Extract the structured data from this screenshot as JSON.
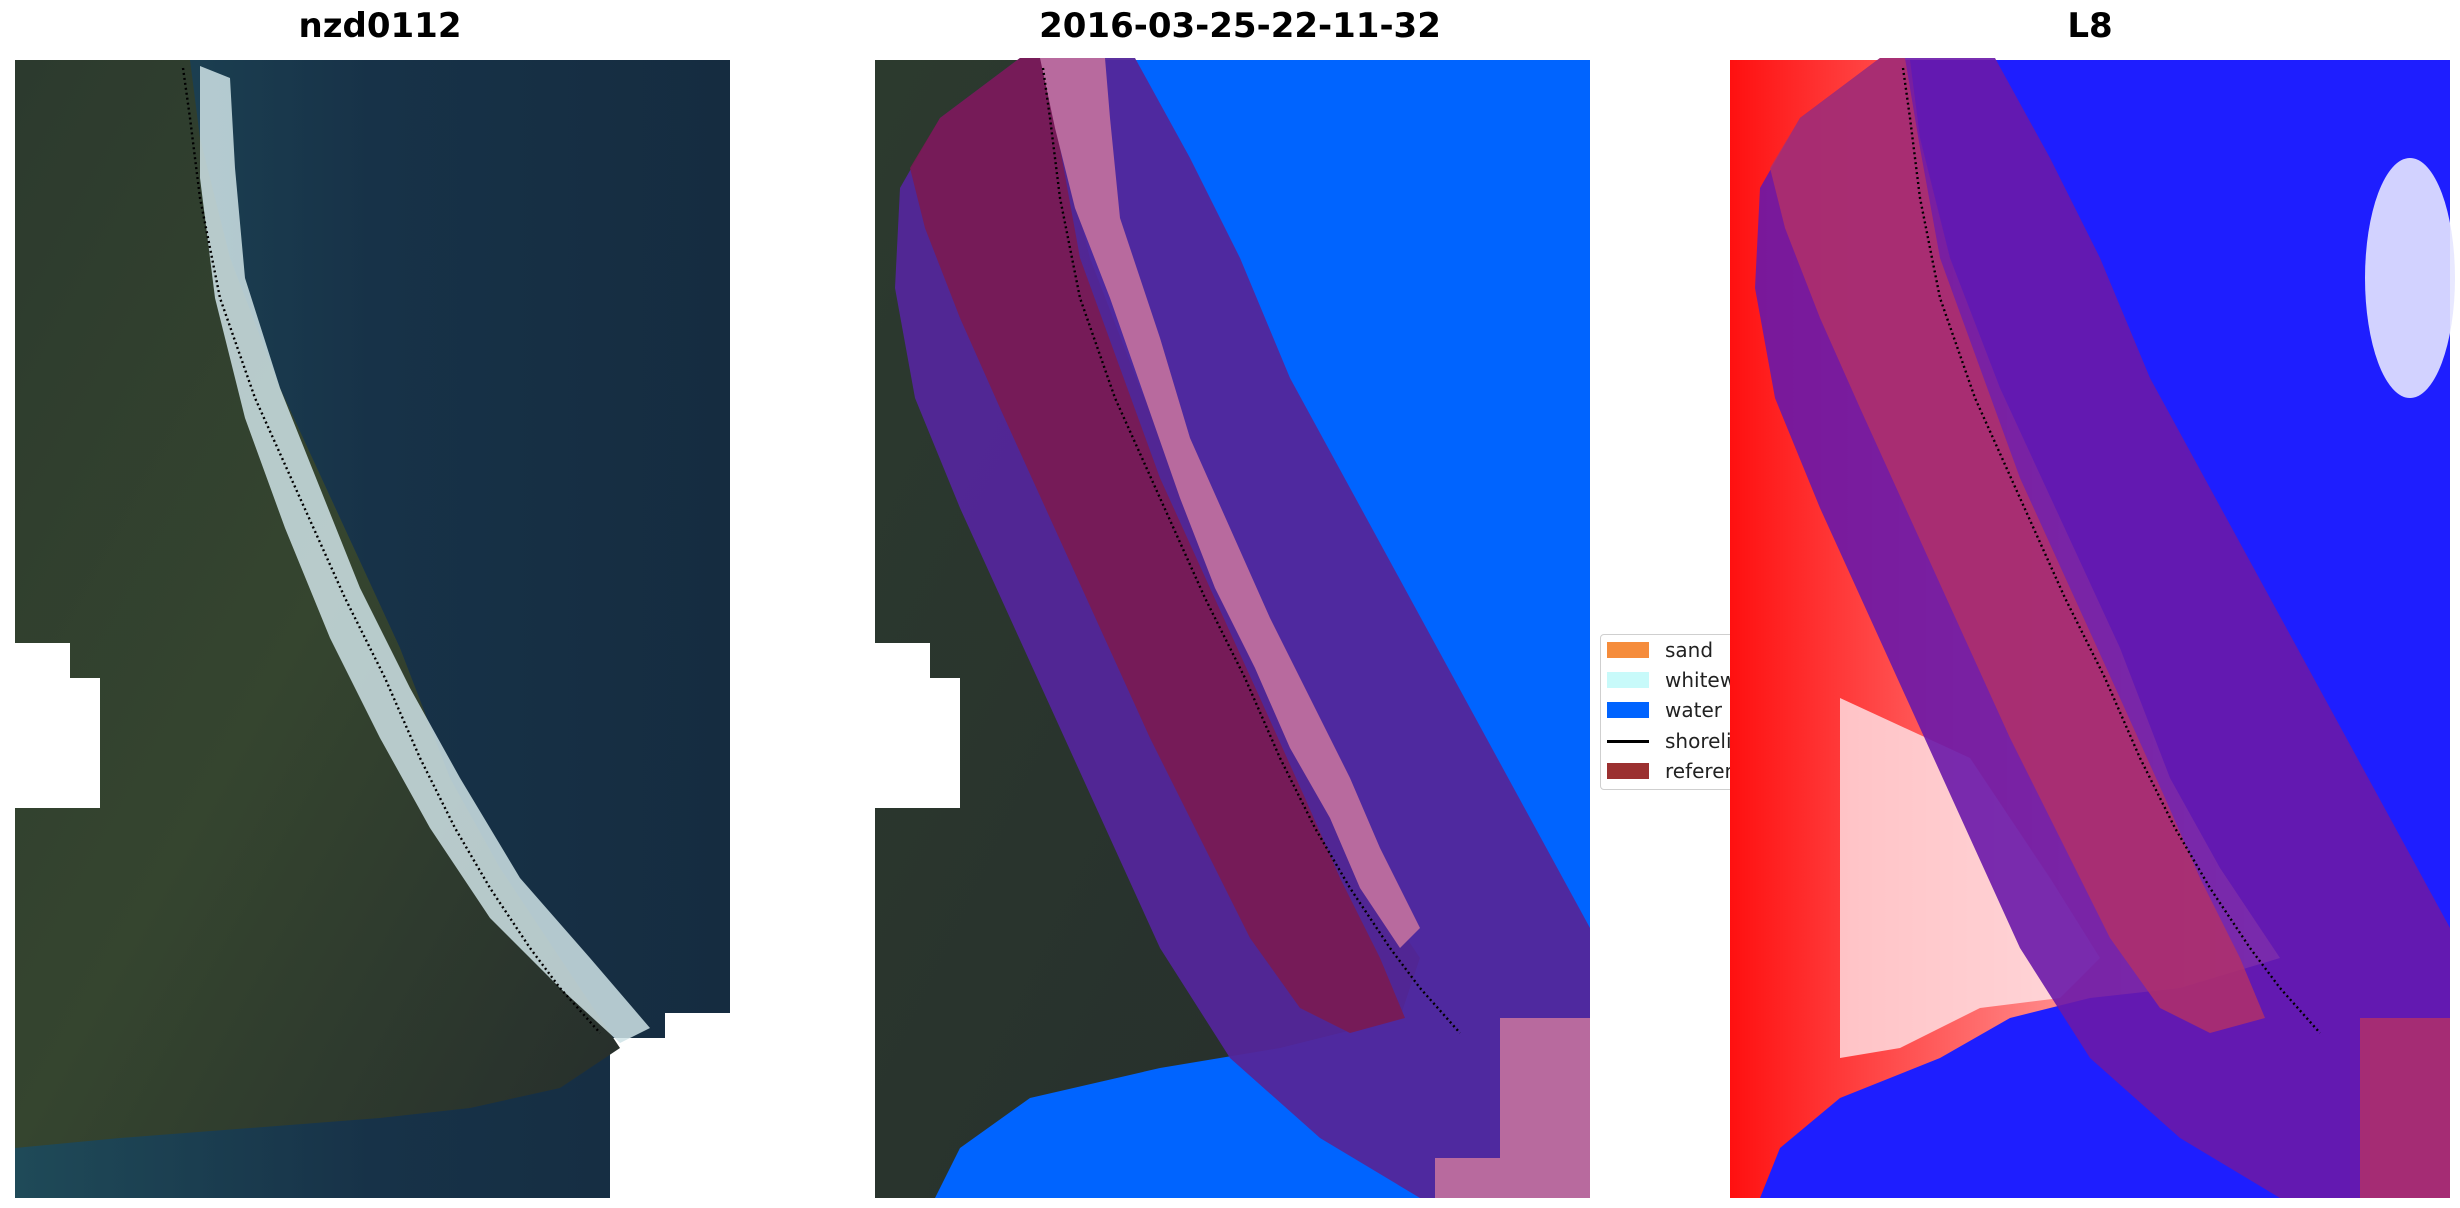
{
  "panels": [
    {
      "title": "nzd0112"
    },
    {
      "title": "2016-03-25-22-11-32"
    },
    {
      "title": "L8"
    }
  ],
  "legend": {
    "items": [
      {
        "label": "sand",
        "color": "#f58c3c",
        "icon": "patch"
      },
      {
        "label": "whitewater",
        "color": "#c8fafa",
        "icon": "patch"
      },
      {
        "label": "water",
        "color": "#0064ff",
        "icon": "patch"
      },
      {
        "label": "shoreline",
        "color": "#000000",
        "icon": "line"
      },
      {
        "label": "reference shoreline",
        "color": "#9b3030",
        "icon": "patch"
      }
    ]
  },
  "colors": {
    "land": "#283a32",
    "sea": "#16344a",
    "buffer": "#7a1a52",
    "water_class": "#0064ff",
    "whitewater_class": "#b86a9e",
    "water_index_high": "#1e1eff",
    "water_index_low": "#ff2020"
  }
}
